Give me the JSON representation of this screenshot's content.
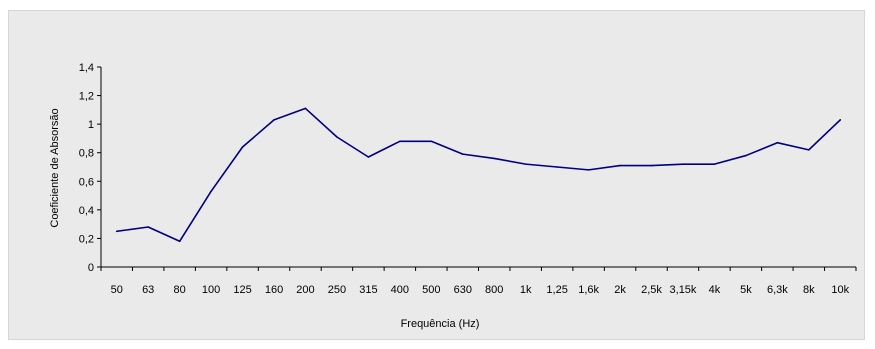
{
  "chart_data": {
    "type": "line",
    "title": "",
    "xlabel": "Frequência (Hz)",
    "ylabel": "Coeficiente de Absorsão",
    "ylim": [
      0,
      1.4
    ],
    "yticks": [
      0,
      0.2,
      0.4,
      0.6,
      0.8,
      1,
      1.2,
      1.4
    ],
    "ytick_labels": [
      "0",
      "0,2",
      "0,4",
      "0,6",
      "0,8",
      "1",
      "1,2",
      "1,4"
    ],
    "grid": false,
    "categories": [
      "50",
      "63",
      "80",
      "100",
      "125",
      "160",
      "200",
      "250",
      "315",
      "400",
      "500",
      "630",
      "800",
      "1k",
      "1,25",
      "1,6k",
      "2k",
      "2,5k",
      "3,15k",
      "4k",
      "5k",
      "6,3k",
      "8k",
      "10k"
    ],
    "series": [
      {
        "color": "#000080",
        "values": [
          0.25,
          0.28,
          0.18,
          0.53,
          0.84,
          1.03,
          1.11,
          0.91,
          0.77,
          0.88,
          0.88,
          0.79,
          0.76,
          0.72,
          0.7,
          0.68,
          0.71,
          0.71,
          0.72,
          0.72,
          0.78,
          0.87,
          0.82,
          1.03
        ]
      }
    ]
  }
}
